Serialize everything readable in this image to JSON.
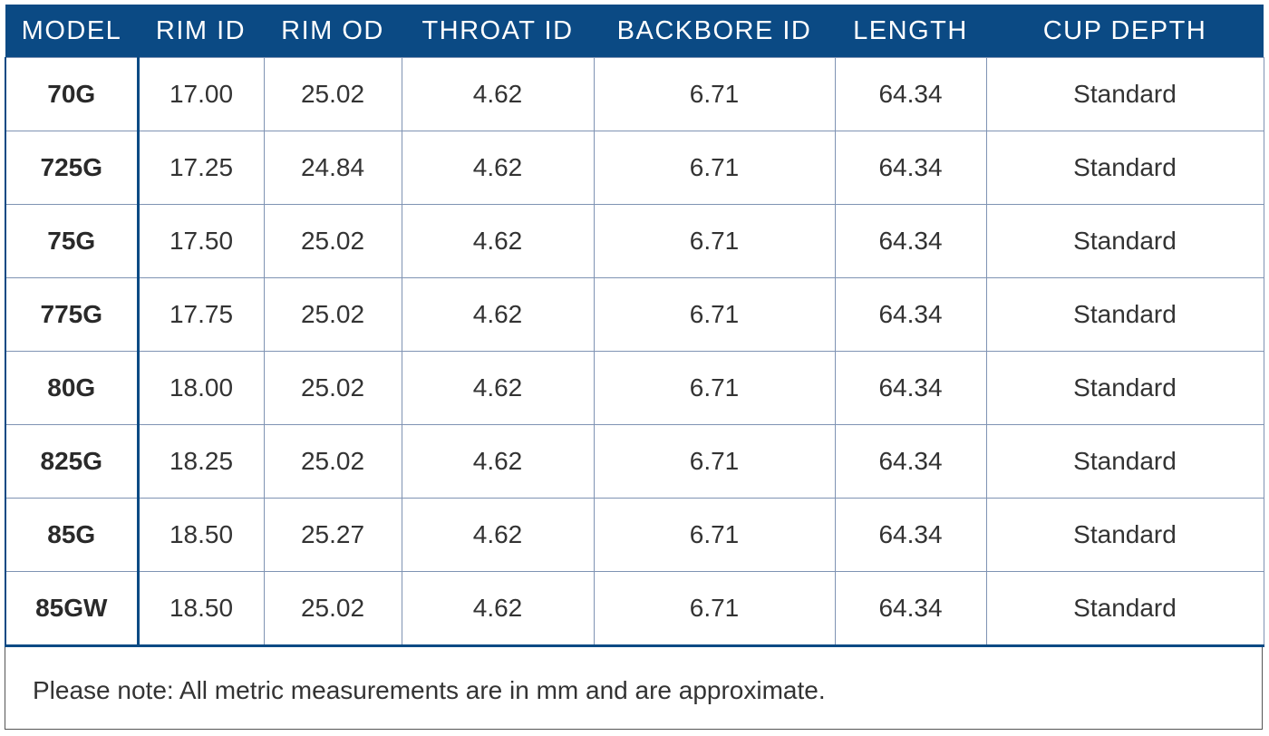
{
  "table": {
    "header": [
      "MODEL",
      "RIM ID",
      "RIM OD",
      "THROAT ID",
      "BACKBORE ID",
      "LENGTH",
      "CUP DEPTH"
    ],
    "rows": [
      [
        "70G",
        "17.00",
        "25.02",
        "4.62",
        "6.71",
        "64.34",
        "Standard"
      ],
      [
        "725G",
        "17.25",
        "24.84",
        "4.62",
        "6.71",
        "64.34",
        "Standard"
      ],
      [
        "75G",
        "17.50",
        "25.02",
        "4.62",
        "6.71",
        "64.34",
        "Standard"
      ],
      [
        "775G",
        "17.75",
        "25.02",
        "4.62",
        "6.71",
        "64.34",
        "Standard"
      ],
      [
        "80G",
        "18.00",
        "25.02",
        "4.62",
        "6.71",
        "64.34",
        "Standard"
      ],
      [
        "825G",
        "18.25",
        "25.02",
        "4.62",
        "6.71",
        "64.34",
        "Standard"
      ],
      [
        "85G",
        "18.50",
        "25.27",
        "4.62",
        "6.71",
        "64.34",
        "Standard"
      ],
      [
        "85GW",
        "18.50",
        "25.02",
        "4.62",
        "6.71",
        "64.34",
        "Standard"
      ]
    ],
    "note": "Please note: All metric measurements are in mm and are approximate."
  }
}
